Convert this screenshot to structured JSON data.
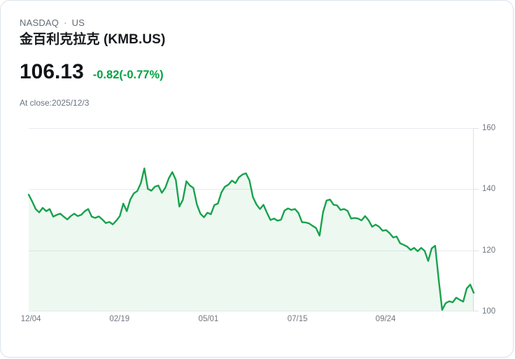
{
  "header": {
    "exchange": "NASDAQ",
    "separator": "·",
    "region": "US",
    "title": "金百利克拉克 (KMB.US)",
    "price": "106.13",
    "change": "-0.82(-0.77%)",
    "as_of": "At close:2025/12/3"
  },
  "colors": {
    "change_text": "#00a342",
    "line": "#18a24c",
    "fill": "rgba(24,162,76,0.08)",
    "grid": "#e8eaee",
    "axis": "#dde1e7",
    "tick_text": "#70767f"
  },
  "chart_data": {
    "type": "area",
    "title": "金百利克拉克 (KMB.US) price history",
    "xlabel": "",
    "ylabel": "",
    "ylim": [
      100,
      160
    ],
    "y_ticks": [
      160,
      140,
      120,
      100
    ],
    "x_ticks": [
      {
        "label": "12/04",
        "pos": 0.005
      },
      {
        "label": "02/19",
        "pos": 0.204
      },
      {
        "label": "05/01",
        "pos": 0.404
      },
      {
        "label": "07/15",
        "pos": 0.604
      },
      {
        "label": "09/24",
        "pos": 0.802
      }
    ],
    "grid": "horizontal",
    "legend": "none",
    "last_close": 106.13,
    "values": [
      138.2,
      136.0,
      133.5,
      132.4,
      133.9,
      132.8,
      133.5,
      131.0,
      131.6,
      132.0,
      131.0,
      130.1,
      131.2,
      132.0,
      131.2,
      131.6,
      132.8,
      133.5,
      131.0,
      130.6,
      131.1,
      130.1,
      128.9,
      129.3,
      128.5,
      129.7,
      131.2,
      135.3,
      132.8,
      136.6,
      138.6,
      139.4,
      142.0,
      146.8,
      140.1,
      139.5,
      140.8,
      141.2,
      138.8,
      140.5,
      143.6,
      145.6,
      143.0,
      134.3,
      136.5,
      142.6,
      141.2,
      140.4,
      135.0,
      132.0,
      130.8,
      132.3,
      131.8,
      134.8,
      135.3,
      138.9,
      140.8,
      141.5,
      142.8,
      142.0,
      143.9,
      144.8,
      145.2,
      142.9,
      137.4,
      135.0,
      133.5,
      134.9,
      132.3,
      129.9,
      130.4,
      129.7,
      130.0,
      133.0,
      133.7,
      133.2,
      133.5,
      132.2,
      129.2,
      129.1,
      128.8,
      128.0,
      127.3,
      124.8,
      132.5,
      136.3,
      136.6,
      134.9,
      134.7,
      133.2,
      133.5,
      132.9,
      130.4,
      130.6,
      130.4,
      129.8,
      131.2,
      129.8,
      127.7,
      128.4,
      127.7,
      126.4,
      126.6,
      125.6,
      124.2,
      124.5,
      122.3,
      121.8,
      121.2,
      120.1,
      120.8,
      119.7,
      120.8,
      119.8,
      116.5,
      120.6,
      121.5,
      110.5,
      100.5,
      102.7,
      103.3,
      103.0,
      104.5,
      103.8,
      103.2,
      107.5,
      108.8,
      106.1
    ]
  }
}
